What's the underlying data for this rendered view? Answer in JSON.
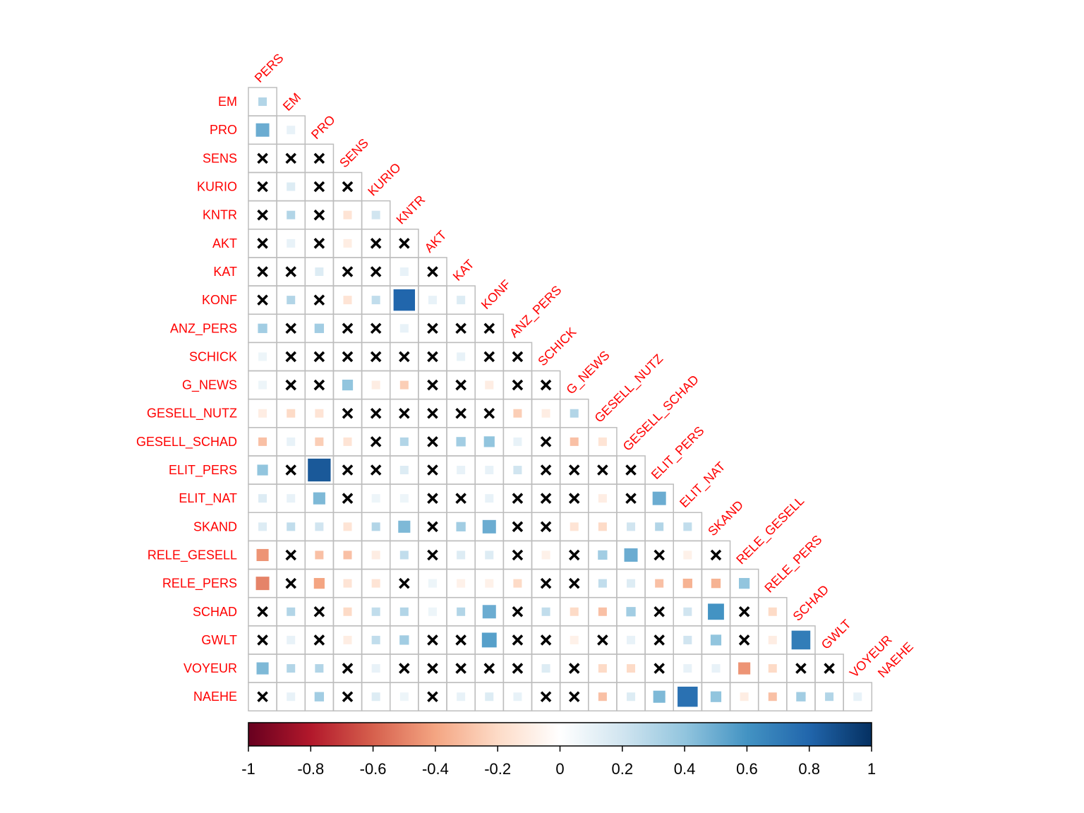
{
  "chart_data": {
    "type": "heatmap",
    "variables": [
      "PERS",
      "EM",
      "PRO",
      "SENS",
      "KURIO",
      "KNTR",
      "AKT",
      "KAT",
      "KONF",
      "ANZ_PERS",
      "SCHICK",
      "G_NEWS",
      "GESELL_NUTZ",
      "GESELL_SCHAD",
      "ELIT_PERS",
      "ELIT_NAT",
      "SKAND",
      "RELE_GESELL",
      "RELE_PERS",
      "SCHAD",
      "GWLT",
      "VOYEUR",
      "NAEHE"
    ],
    "row_labels": [
      "EM",
      "PRO",
      "SENS",
      "KURIO",
      "KNTR",
      "AKT",
      "KAT",
      "KONF",
      "ANZ_PERS",
      "SCHICK",
      "G_NEWS",
      "GESELL_NUTZ",
      "GESELL_SCHAD",
      "ELIT_PERS",
      "ELIT_NAT",
      "SKAND",
      "RELE_GESELL",
      "RELE_PERS",
      "SCHAD",
      "GWLT",
      "VOYEUR",
      "NAEHE"
    ],
    "column_labels": [
      "PERS",
      "EM",
      "PRO",
      "SENS",
      "KURIO",
      "KNTR",
      "AKT",
      "KAT",
      "KONF",
      "ANZ_PERS",
      "SCHICK",
      "G_NEWS",
      "GESELL_NUTZ",
      "GESELL_SCHAD",
      "ELIT_PERS",
      "ELIT_NAT",
      "SKAND",
      "RELE_GESELL",
      "RELE_PERS",
      "SCHAD",
      "GWLT",
      "VOYEUR"
    ],
    "matrix": [
      [
        0.3
      ],
      [
        0.5,
        0.1
      ],
      [
        "x",
        "x",
        "x"
      ],
      [
        "x",
        0.15,
        "x",
        "x"
      ],
      [
        "x",
        0.3,
        "x",
        -0.15,
        0.2
      ],
      [
        "x",
        0.1,
        "x",
        -0.1,
        "x",
        "x"
      ],
      [
        "x",
        "x",
        0.15,
        "x",
        "x",
        0.1,
        "x"
      ],
      [
        "x",
        0.3,
        "x",
        -0.15,
        0.25,
        0.8,
        0.1,
        0.15
      ],
      [
        0.35,
        "x",
        0.35,
        "x",
        "x",
        0.1,
        "x",
        "x",
        "x"
      ],
      [
        0.08,
        "x",
        "x",
        "x",
        "x",
        "x",
        "x",
        0.1,
        "x",
        "x"
      ],
      [
        0.08,
        "x",
        "x",
        0.4,
        -0.1,
        -0.25,
        "x",
        "x",
        -0.1,
        "x",
        "x"
      ],
      [
        -0.1,
        -0.2,
        -0.15,
        "x",
        "x",
        "x",
        "x",
        "x",
        "x",
        -0.25,
        -0.1,
        0.3
      ],
      [
        -0.3,
        0.1,
        -0.25,
        -0.15,
        "x",
        0.3,
        "x",
        0.35,
        0.4,
        0.1,
        "x",
        -0.3,
        -0.15
      ],
      [
        0.4,
        "x",
        0.85,
        "x",
        "x",
        0.15,
        "x",
        0.1,
        0.1,
        0.2,
        "x",
        "x",
        "x",
        "x"
      ],
      [
        0.15,
        0.1,
        0.45,
        "x",
        0.08,
        0.08,
        "x",
        "x",
        0.1,
        "x",
        "x",
        "x",
        -0.1,
        "x",
        0.5
      ],
      [
        0.15,
        0.25,
        0.2,
        -0.15,
        0.3,
        0.45,
        "x",
        0.35,
        0.5,
        "x",
        "x",
        -0.15,
        -0.2,
        0.2,
        0.3,
        0.25
      ],
      [
        -0.45,
        "x",
        -0.3,
        -0.3,
        -0.1,
        0.25,
        "x",
        0.15,
        0.15,
        "x",
        -0.08,
        "x",
        0.35,
        0.5,
        "x",
        -0.08,
        "x"
      ],
      [
        -0.5,
        "x",
        -0.4,
        -0.15,
        -0.15,
        "x",
        0.08,
        -0.08,
        -0.08,
        -0.2,
        "x",
        "x",
        0.25,
        0.15,
        -0.3,
        -0.35,
        -0.35,
        0.4
      ],
      [
        "x",
        0.3,
        "x",
        -0.2,
        0.25,
        0.3,
        0.08,
        0.3,
        0.5,
        "x",
        0.25,
        -0.2,
        -0.3,
        0.35,
        "x",
        0.2,
        0.6,
        "x",
        -0.2
      ],
      [
        "x",
        0.1,
        "x",
        -0.1,
        0.25,
        0.35,
        "x",
        "x",
        0.55,
        "x",
        "x",
        -0.08,
        "x",
        0.1,
        "x",
        0.2,
        0.4,
        "x",
        -0.1,
        0.7
      ],
      [
        0.45,
        0.3,
        0.3,
        "x",
        0.1,
        "x",
        "x",
        "x",
        "x",
        "x",
        0.15,
        "x",
        -0.2,
        -0.2,
        "x",
        0.1,
        0.1,
        -0.45,
        -0.2,
        "x",
        "x"
      ],
      [
        "x",
        0.1,
        0.35,
        "x",
        0.15,
        0.08,
        "x",
        0.1,
        0.15,
        0.1,
        "x",
        "x",
        -0.3,
        0.15,
        0.45,
        0.75,
        0.4,
        -0.1,
        -0.3,
        0.35,
        0.3,
        0.1
      ]
    ],
    "colorbar": {
      "range": [
        -1,
        1
      ],
      "ticks": [
        "-1",
        "-0.8",
        "-0.6",
        "-0.4",
        "-0.2",
        "0",
        "0.2",
        "0.4",
        "0.6",
        "0.8",
        "1"
      ],
      "colors": [
        "#67001F",
        "#B2182B",
        "#D6604D",
        "#F4A582",
        "#FDDBC7",
        "#FFFFFF",
        "#D1E5F0",
        "#92C5DE",
        "#4393C3",
        "#2166AC",
        "#053061"
      ]
    }
  }
}
